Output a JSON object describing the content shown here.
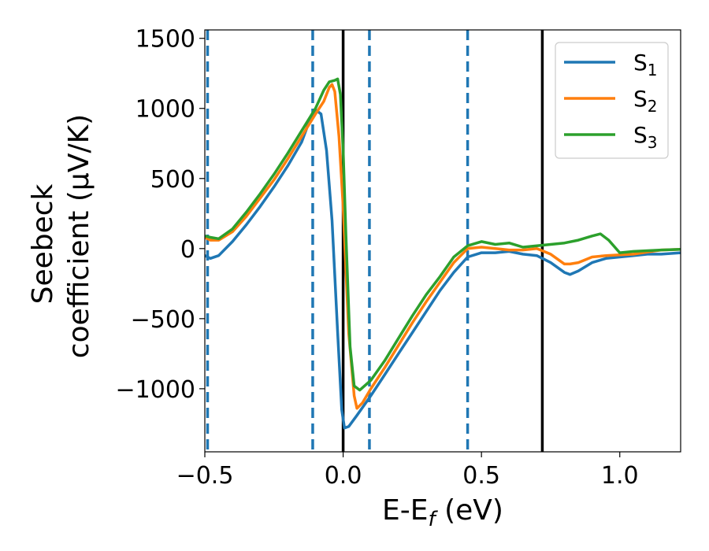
{
  "chart_data": {
    "type": "line",
    "title": "",
    "xlabel": {
      "main": "E-E",
      "sub": "f",
      "unit": " (eV)"
    },
    "ylabel": {
      "line1": "Seebeck",
      "line2": "coefficient  (μV/K)"
    },
    "xlim": [
      -0.5,
      1.22
    ],
    "ylim": [
      -1450,
      1560
    ],
    "xticks": [
      {
        "value": -0.5,
        "label": "−0.5"
      },
      {
        "value": 0.0,
        "label": "0.0"
      },
      {
        "value": 0.5,
        "label": "0.5"
      },
      {
        "value": 1.0,
        "label": "1.0"
      }
    ],
    "yticks": [
      {
        "value": 1500,
        "label": "1500"
      },
      {
        "value": 1000,
        "label": "1000"
      },
      {
        "value": 500,
        "label": "500"
      },
      {
        "value": 0,
        "label": "0"
      },
      {
        "value": -500,
        "label": "−500"
      },
      {
        "value": -1000,
        "label": "−1000"
      }
    ],
    "legend_position": "top-right",
    "grid": false,
    "vlines_solid": [
      0.0,
      0.72
    ],
    "vlines_dashed": [
      -0.49,
      -0.11,
      0.095,
      0.45
    ],
    "vline_solid_color": "#000000",
    "vline_dashed_color": "#1f77b4",
    "series": [
      {
        "name": "S",
        "sub": "1",
        "color": "#1f77b4",
        "points": [
          [
            -0.5,
            -50
          ],
          [
            -0.48,
            -70
          ],
          [
            -0.45,
            -50
          ],
          [
            -0.4,
            50
          ],
          [
            -0.35,
            170
          ],
          [
            -0.3,
            300
          ],
          [
            -0.25,
            440
          ],
          [
            -0.2,
            590
          ],
          [
            -0.15,
            760
          ],
          [
            -0.12,
            920
          ],
          [
            -0.1,
            990
          ],
          [
            -0.08,
            960
          ],
          [
            -0.06,
            700
          ],
          [
            -0.04,
            200
          ],
          [
            -0.02,
            -600
          ],
          [
            -0.005,
            -1150
          ],
          [
            0.005,
            -1280
          ],
          [
            0.02,
            -1270
          ],
          [
            0.05,
            -1190
          ],
          [
            0.1,
            -1050
          ],
          [
            0.15,
            -900
          ],
          [
            0.2,
            -750
          ],
          [
            0.25,
            -600
          ],
          [
            0.3,
            -450
          ],
          [
            0.35,
            -300
          ],
          [
            0.4,
            -170
          ],
          [
            0.45,
            -60
          ],
          [
            0.5,
            -30
          ],
          [
            0.55,
            -30
          ],
          [
            0.6,
            -20
          ],
          [
            0.65,
            -40
          ],
          [
            0.7,
            -50
          ],
          [
            0.75,
            -100
          ],
          [
            0.8,
            -170
          ],
          [
            0.82,
            -185
          ],
          [
            0.85,
            -160
          ],
          [
            0.9,
            -100
          ],
          [
            0.95,
            -70
          ],
          [
            1.0,
            -60
          ],
          [
            1.05,
            -50
          ],
          [
            1.1,
            -40
          ],
          [
            1.15,
            -40
          ],
          [
            1.22,
            -30
          ]
        ]
      },
      {
        "name": "S",
        "sub": "2",
        "color": "#ff7f0e",
        "points": [
          [
            -0.5,
            80
          ],
          [
            -0.48,
            60
          ],
          [
            -0.45,
            60
          ],
          [
            -0.4,
            120
          ],
          [
            -0.35,
            230
          ],
          [
            -0.3,
            360
          ],
          [
            -0.25,
            490
          ],
          [
            -0.2,
            640
          ],
          [
            -0.15,
            800
          ],
          [
            -0.1,
            960
          ],
          [
            -0.07,
            1050
          ],
          [
            -0.05,
            1150
          ],
          [
            -0.04,
            1170
          ],
          [
            -0.03,
            1120
          ],
          [
            -0.015,
            800
          ],
          [
            0.0,
            300
          ],
          [
            0.02,
            -600
          ],
          [
            0.04,
            -1050
          ],
          [
            0.05,
            -1140
          ],
          [
            0.07,
            -1100
          ],
          [
            0.1,
            -1000
          ],
          [
            0.15,
            -850
          ],
          [
            0.2,
            -690
          ],
          [
            0.25,
            -530
          ],
          [
            0.3,
            -380
          ],
          [
            0.35,
            -240
          ],
          [
            0.4,
            -100
          ],
          [
            0.45,
            0
          ],
          [
            0.5,
            10
          ],
          [
            0.55,
            0
          ],
          [
            0.6,
            -10
          ],
          [
            0.65,
            -10
          ],
          [
            0.7,
            0
          ],
          [
            0.75,
            -40
          ],
          [
            0.8,
            -110
          ],
          [
            0.82,
            -110
          ],
          [
            0.85,
            -100
          ],
          [
            0.9,
            -60
          ],
          [
            0.95,
            -50
          ],
          [
            1.0,
            -45
          ],
          [
            1.05,
            -40
          ],
          [
            1.1,
            -25
          ],
          [
            1.15,
            -10
          ],
          [
            1.22,
            -5
          ]
        ]
      },
      {
        "name": "S",
        "sub": "3",
        "color": "#2ca02c",
        "points": [
          [
            -0.5,
            90
          ],
          [
            -0.48,
            80
          ],
          [
            -0.45,
            70
          ],
          [
            -0.4,
            140
          ],
          [
            -0.35,
            260
          ],
          [
            -0.3,
            390
          ],
          [
            -0.25,
            530
          ],
          [
            -0.2,
            680
          ],
          [
            -0.15,
            840
          ],
          [
            -0.1,
            1000
          ],
          [
            -0.07,
            1130
          ],
          [
            -0.05,
            1190
          ],
          [
            -0.03,
            1200
          ],
          [
            -0.02,
            1210
          ],
          [
            -0.01,
            1100
          ],
          [
            0.0,
            700
          ],
          [
            0.01,
            100
          ],
          [
            0.025,
            -700
          ],
          [
            0.04,
            -980
          ],
          [
            0.06,
            -1010
          ],
          [
            0.1,
            -940
          ],
          [
            0.15,
            -800
          ],
          [
            0.2,
            -640
          ],
          [
            0.25,
            -480
          ],
          [
            0.3,
            -330
          ],
          [
            0.35,
            -200
          ],
          [
            0.4,
            -60
          ],
          [
            0.45,
            20
          ],
          [
            0.5,
            50
          ],
          [
            0.55,
            30
          ],
          [
            0.6,
            40
          ],
          [
            0.65,
            10
          ],
          [
            0.7,
            20
          ],
          [
            0.75,
            30
          ],
          [
            0.8,
            40
          ],
          [
            0.85,
            60
          ],
          [
            0.9,
            90
          ],
          [
            0.93,
            105
          ],
          [
            0.96,
            60
          ],
          [
            1.0,
            -30
          ],
          [
            1.05,
            -20
          ],
          [
            1.1,
            -15
          ],
          [
            1.15,
            -10
          ],
          [
            1.22,
            -5
          ]
        ]
      }
    ]
  }
}
